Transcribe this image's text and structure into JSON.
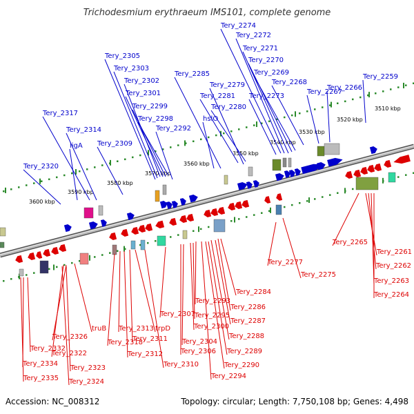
{
  "title": "Trichodesmium erythraeum IMS101, complete genome",
  "footer": {
    "accession": "Accession: NC_008312",
    "summary": "Topology: circular; Length: 7,750,108 bp; Genes: 4,498"
  },
  "scale_labels": [
    "3510 kbp",
    "3520 kbp",
    "3530 kbp",
    "3540 kbp",
    "3550 kbp",
    "3560 kbp",
    "3570 kbp",
    "3580 kbp",
    "3590 kbp",
    "3600 kbp"
  ],
  "forward_genes": [
    "Tery_2274",
    "Tery_2272",
    "Tery_2271",
    "Tery_2270",
    "Tery_2269",
    "Tery_2268",
    "Tery_2267",
    "Tery_2266",
    "Tery_2259",
    "Tery_2273",
    "Tery_2285",
    "Tery_2279",
    "Tery_2281",
    "Tery_2280",
    "hslO",
    "Tery_2305",
    "Tery_2303",
    "Tery_2302",
    "Tery_2301",
    "Tery_2299",
    "Tery_2298",
    "Tery_2292",
    "Tery_2317",
    "Tery_2314",
    "ligA",
    "Tery_2309",
    "Tery_2320"
  ],
  "reverse_genes": [
    "Tery_2265",
    "Tery_2261",
    "Tery_2262",
    "Tery_2263",
    "Tery_2264",
    "Tery_2277",
    "Tery_2275",
    "Tery_2284",
    "Tery_2286",
    "Tery_2287",
    "Tery_2288",
    "Tery_2289",
    "Tery_2290",
    "Tery_2294",
    "Tery_2293",
    "Tery_2295",
    "Tery_2300",
    "Tery_2304",
    "Tery_2306",
    "Tery_2307",
    "Tery_2310",
    "trpD",
    "Tery_2311",
    "Tery_2312",
    "Tery_2313",
    "Tery_2318",
    "truB",
    "Tery_2326",
    "Tery_2322",
    "Tery_2323",
    "Tery_2324",
    "Tery_2332",
    "Tery_2334",
    "Tery_2335"
  ],
  "colors": {
    "forward": "#0000cc",
    "reverse": "#dd0000",
    "backbone": "#888888",
    "scale_tick": "#2a8a2a"
  }
}
